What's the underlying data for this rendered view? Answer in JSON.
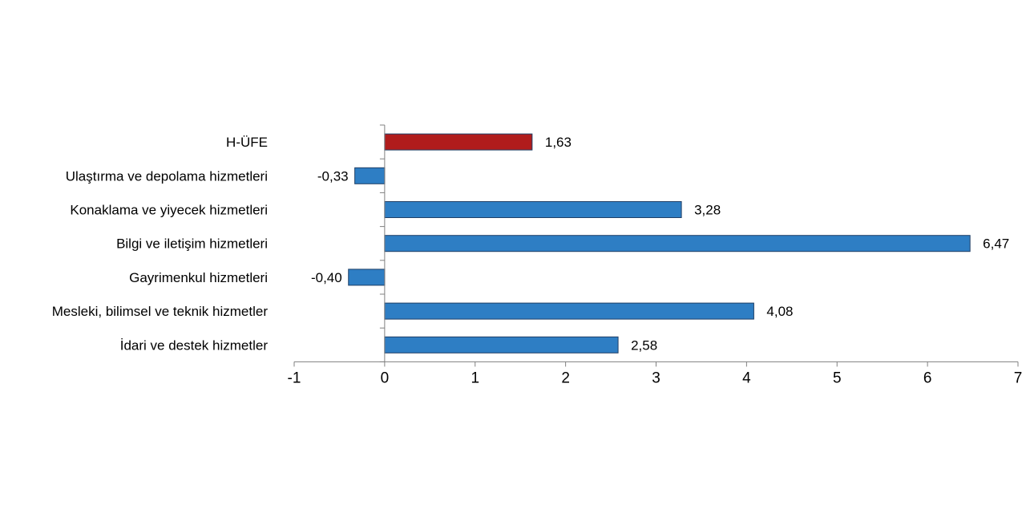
{
  "chart_data": {
    "type": "bar",
    "orientation": "horizontal",
    "categories": [
      "H-ÜFE",
      "Ulaştırma ve depolama hizmetleri",
      "Konaklama ve yiyecek hizmetleri",
      "Bilgi ve iletişim hizmetleri",
      "Gayrimenkul hizmetleri",
      "Mesleki, bilimsel ve teknik hizmetler",
      "İdari ve destek hizmetler"
    ],
    "values": [
      1.63,
      -0.33,
      3.28,
      6.47,
      -0.4,
      4.08,
      2.58
    ],
    "value_labels": [
      "1,63",
      "-0,33",
      "3,28",
      "6,47",
      "-0,40",
      "4,08",
      "2,58"
    ],
    "bar_colors": [
      "#b01c1c",
      "#2e7ec4",
      "#2e7ec4",
      "#2e7ec4",
      "#2e7ec4",
      "#2e7ec4",
      "#2e7ec4"
    ],
    "xlim": [
      -1,
      7
    ],
    "xticks": [
      "-1",
      "0",
      "1",
      "2",
      "3",
      "4",
      "5",
      "6",
      "7"
    ],
    "grid": false,
    "legend": "none",
    "title": "",
    "xlabel": "",
    "ylabel": ""
  }
}
